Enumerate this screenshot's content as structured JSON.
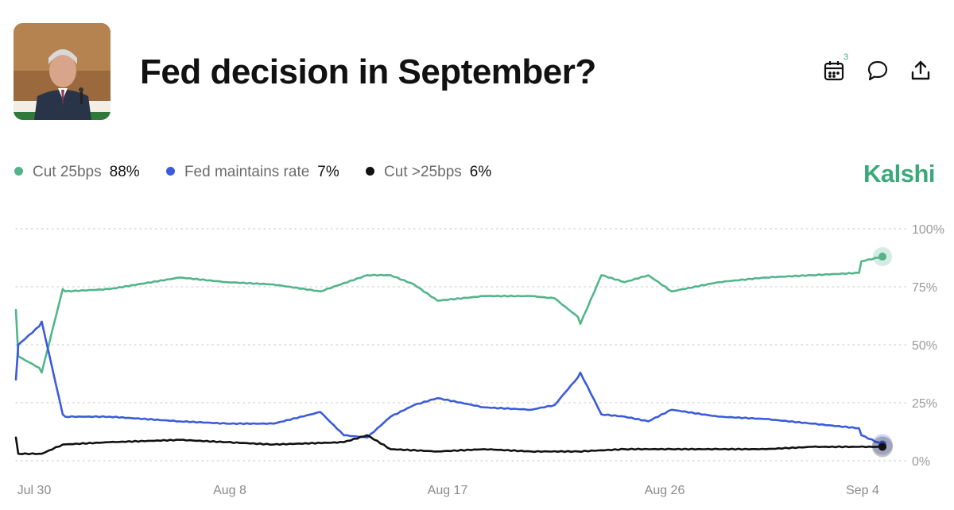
{
  "header": {
    "title": "Fed decision in September?",
    "calendar_badge": "3",
    "icons": [
      "calendar-icon",
      "comment-icon",
      "share-icon"
    ]
  },
  "legend": [
    {
      "name": "Cut 25bps",
      "value": "88%",
      "color": "#52b58a"
    },
    {
      "name": "Fed maintains rate",
      "value": "7%",
      "color": "#3b5bdb"
    },
    {
      "name": "Cut >25bps",
      "value": "6%",
      "color": "#111111"
    }
  ],
  "brand": "Kalshi",
  "chart_data": {
    "type": "line",
    "x_tick_labels": [
      "Jul 30",
      "Aug 8",
      "Aug 17",
      "Aug 26",
      "Sep 4"
    ],
    "y_tick_labels": [
      "100%",
      "75%",
      "50%",
      "25%",
      "0%"
    ],
    "ylim": [
      0,
      100
    ],
    "grid": true,
    "series": [
      {
        "name": "Cut 25bps",
        "color": "#52b58a",
        "x": [
          "Jul 29",
          "Jul 29",
          "Jul 30",
          "Jul 30",
          "Jul 31",
          "Jul 31",
          "Aug 2",
          "Aug 5",
          "Aug 7",
          "Aug 9",
          "Aug 11",
          "Aug 13",
          "Aug 14",
          "Aug 15",
          "Aug 16",
          "Aug 18",
          "Aug 20",
          "Aug 21",
          "Aug 22",
          "Aug 22",
          "Aug 23",
          "Aug 24",
          "Aug 25",
          "Aug 26",
          "Aug 28",
          "Aug 30",
          "Sep 1",
          "Sep 3",
          "Sep 3",
          "Sep 4"
        ],
        "y": [
          65,
          45,
          40,
          38,
          74,
          73,
          74,
          79,
          77,
          76,
          73,
          80,
          80,
          76,
          69,
          71,
          71,
          70,
          62,
          59,
          80,
          77,
          80,
          73,
          77,
          79,
          80,
          81,
          86,
          88
        ]
      },
      {
        "name": "Fed maintains rate",
        "color": "#3b5bdb",
        "x": [
          "Jul 29",
          "Jul 29",
          "Jul 30",
          "Jul 30",
          "Jul 31",
          "Jul 31",
          "Aug 2",
          "Aug 5",
          "Aug 7",
          "Aug 9",
          "Aug 11",
          "Aug 12",
          "Aug 13",
          "Aug 14",
          "Aug 15",
          "Aug 16",
          "Aug 18",
          "Aug 20",
          "Aug 21",
          "Aug 22",
          "Aug 22",
          "Aug 23",
          "Aug 24",
          "Aug 25",
          "Aug 26",
          "Aug 28",
          "Aug 30",
          "Sep 1",
          "Sep 3",
          "Sep 3",
          "Sep 4"
        ],
        "y": [
          35,
          50,
          58,
          60,
          20,
          19,
          19,
          17,
          16,
          16,
          21,
          11,
          10,
          19,
          24,
          27,
          23,
          22,
          24,
          36,
          38,
          20,
          19,
          17,
          22,
          19,
          18,
          16,
          14,
          11,
          7
        ]
      },
      {
        "name": "Cut >25bps",
        "color": "#111111",
        "x": [
          "Jul 29",
          "Jul 29",
          "Jul 30",
          "Jul 30",
          "Jul 31",
          "Aug 2",
          "Aug 5",
          "Aug 7",
          "Aug 9",
          "Aug 12",
          "Aug 13",
          "Aug 14",
          "Aug 16",
          "Aug 18",
          "Aug 20",
          "Aug 22",
          "Aug 24",
          "Aug 26",
          "Aug 28",
          "Aug 30",
          "Sep 1",
          "Sep 3",
          "Sep 4"
        ],
        "y": [
          10,
          3,
          3,
          3,
          7,
          8,
          9,
          8,
          7,
          8,
          11,
          5,
          4,
          5,
          4,
          4,
          5,
          5,
          5,
          5,
          6,
          6,
          6
        ]
      }
    ]
  }
}
